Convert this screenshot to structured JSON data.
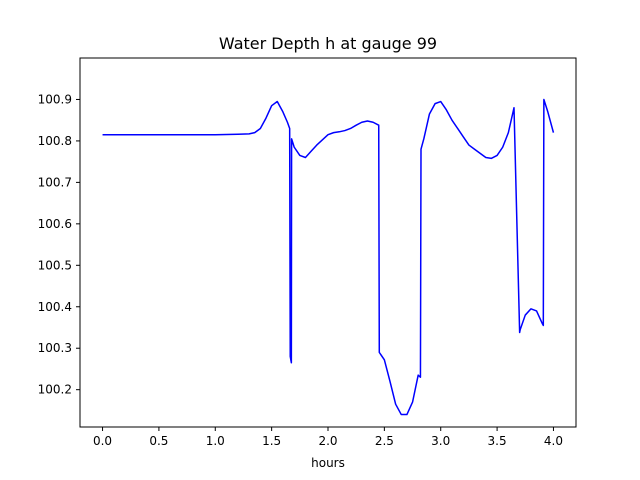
{
  "chart_data": {
    "type": "line",
    "title": "Water Depth h at gauge 99",
    "xlabel": "hours",
    "ylabel": "",
    "xlim": [
      -0.2,
      4.2
    ],
    "ylim": [
      100.11,
      101.0
    ],
    "grid": false,
    "x_ticks": [
      0.0,
      0.5,
      1.0,
      1.5,
      2.0,
      2.5,
      3.0,
      3.5,
      4.0
    ],
    "x_tick_labels": [
      "0.0",
      "0.5",
      "1.0",
      "1.5",
      "2.0",
      "2.5",
      "3.0",
      "3.5",
      "4.0"
    ],
    "y_ticks": [
      100.2,
      100.3,
      100.4,
      100.5,
      100.6,
      100.7,
      100.8,
      100.9
    ],
    "y_tick_labels": [
      "100.2",
      "100.3",
      "100.4",
      "100.5",
      "100.6",
      "100.7",
      "100.8",
      "100.9"
    ],
    "series": [
      {
        "color": "#0000ff",
        "x": [
          0.0,
          0.5,
          1.0,
          1.2,
          1.3,
          1.35,
          1.4,
          1.45,
          1.5,
          1.55,
          1.6,
          1.64,
          1.66,
          1.665,
          1.675,
          1.677,
          1.7,
          1.75,
          1.8,
          1.85,
          1.9,
          2.0,
          2.05,
          2.1,
          2.15,
          2.2,
          2.25,
          2.3,
          2.35,
          2.4,
          2.45,
          2.455,
          2.5,
          2.55,
          2.6,
          2.65,
          2.7,
          2.75,
          2.8,
          2.82,
          2.825,
          2.85,
          2.9,
          2.95,
          3.0,
          3.05,
          3.1,
          3.15,
          3.2,
          3.25,
          3.3,
          3.35,
          3.4,
          3.45,
          3.5,
          3.55,
          3.6,
          3.65,
          3.7,
          3.705,
          3.75,
          3.8,
          3.85,
          3.9,
          3.91,
          3.915,
          3.95,
          4.0
        ],
        "y": [
          100.815,
          100.815,
          100.815,
          100.816,
          100.817,
          100.82,
          100.83,
          100.855,
          100.885,
          100.895,
          100.87,
          100.845,
          100.83,
          100.28,
          100.265,
          100.805,
          100.785,
          100.765,
          100.76,
          100.775,
          100.79,
          100.815,
          100.82,
          100.822,
          100.825,
          100.83,
          100.838,
          100.845,
          100.848,
          100.845,
          100.838,
          100.29,
          100.272,
          100.22,
          100.165,
          100.14,
          100.14,
          100.17,
          100.235,
          100.23,
          100.78,
          100.805,
          100.865,
          100.89,
          100.895,
          100.875,
          100.85,
          100.83,
          100.81,
          100.79,
          100.78,
          100.77,
          100.76,
          100.758,
          100.765,
          100.785,
          100.82,
          100.88,
          100.338,
          100.345,
          100.38,
          100.395,
          100.39,
          100.36,
          100.355,
          100.9,
          100.87,
          100.82
        ]
      }
    ]
  }
}
